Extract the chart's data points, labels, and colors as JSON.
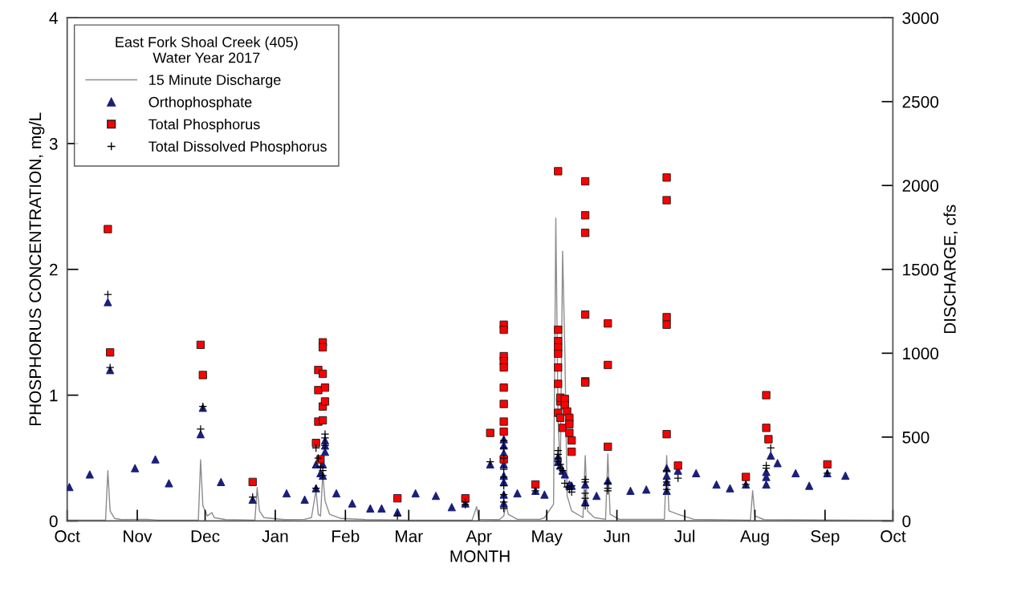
{
  "chart_data": {
    "type": "scatter",
    "legend_title": "East Fork Shoal Creek (405)\nWater Year 2017",
    "xlabel": "MONTH",
    "ylabel": "PHOSPHORUS CONCENTRATION, mg/L",
    "y2label": "DISCHARGE, cfs",
    "xlim": [
      "2016-10-01",
      "2017-10-01"
    ],
    "xticks": [
      {
        "value": "2016-10-01",
        "label": "Oct"
      },
      {
        "value": "2016-11-01",
        "label": "Nov"
      },
      {
        "value": "2016-12-01",
        "label": "Dec"
      },
      {
        "value": "2017-01-01",
        "label": "Jan"
      },
      {
        "value": "2017-02-01",
        "label": "Feb"
      },
      {
        "value": "2017-03-01",
        "label": "Mar"
      },
      {
        "value": "2017-04-01",
        "label": "Apr"
      },
      {
        "value": "2017-05-01",
        "label": "May"
      },
      {
        "value": "2017-06-01",
        "label": "Jun"
      },
      {
        "value": "2017-07-01",
        "label": "Jul"
      },
      {
        "value": "2017-08-01",
        "label": "Aug"
      },
      {
        "value": "2017-09-01",
        "label": "Sep"
      },
      {
        "value": "2017-10-01",
        "label": "Oct"
      }
    ],
    "ylim": [
      0,
      4
    ],
    "yticks": [
      0,
      1,
      2,
      3,
      4
    ],
    "y2lim": [
      0,
      3000
    ],
    "y2ticks": [
      0,
      500,
      1000,
      1500,
      2000,
      2500,
      3000
    ],
    "grid": false,
    "legend": "top left",
    "series": [
      {
        "name": "15 Minute Discharge",
        "type": "line",
        "axis": "y2",
        "color": "#8c8c8c",
        "marker": "none",
        "line_style": "solid",
        "x": [
          "2016-10-01",
          "2016-10-18",
          "2016-10-19",
          "2016-10-20",
          "2016-10-22",
          "2016-10-25",
          "2016-11-05",
          "2016-11-10",
          "2016-11-28",
          "2016-11-29",
          "2016-11-30",
          "2016-12-02",
          "2016-12-04",
          "2016-12-05",
          "2016-12-10",
          "2016-12-23",
          "2016-12-24",
          "2016-12-25",
          "2016-12-27",
          "2017-01-05",
          "2017-01-14",
          "2017-01-17",
          "2017-01-19",
          "2017-01-20",
          "2017-01-21",
          "2017-01-22",
          "2017-01-23",
          "2017-01-25",
          "2017-01-30",
          "2017-02-10",
          "2017-03-01",
          "2017-03-29",
          "2017-03-31",
          "2017-04-01",
          "2017-04-10",
          "2017-04-12",
          "2017-04-13",
          "2017-04-14",
          "2017-04-18",
          "2017-04-28",
          "2017-04-30",
          "2017-05-04",
          "2017-05-05",
          "2017-05-06",
          "2017-05-07",
          "2017-05-08",
          "2017-05-09",
          "2017-05-10",
          "2017-05-12",
          "2017-05-17",
          "2017-05-18",
          "2017-05-19",
          "2017-05-22",
          "2017-05-27",
          "2017-05-28",
          "2017-05-29",
          "2017-06-02",
          "2017-06-22",
          "2017-06-23",
          "2017-06-24",
          "2017-06-28",
          "2017-07-05",
          "2017-07-30",
          "2017-07-31",
          "2017-08-01",
          "2017-08-05",
          "2017-09-30"
        ],
        "values": [
          5,
          5,
          300,
          60,
          15,
          8,
          10,
          5,
          5,
          365,
          90,
          30,
          50,
          20,
          8,
          5,
          200,
          60,
          20,
          8,
          10,
          20,
          183,
          40,
          30,
          280,
          120,
          40,
          15,
          8,
          5,
          5,
          85,
          10,
          8,
          30,
          100,
          40,
          10,
          10,
          20,
          100,
          1805,
          600,
          300,
          1608,
          1010,
          150,
          60,
          20,
          390,
          60,
          20,
          10,
          400,
          40,
          10,
          10,
          390,
          60,
          40,
          10,
          5,
          180,
          30,
          8,
          3
        ]
      },
      {
        "name": "Orthophosphate",
        "color": "#1a1f7a",
        "marker": "triangle",
        "x": [
          "2016-10-02",
          "2016-10-11",
          "2016-10-19",
          "2016-10-20",
          "2016-10-31",
          "2016-11-09",
          "2016-11-15",
          "2016-11-29",
          "2016-11-30",
          "2016-12-08",
          "2016-12-22",
          "2017-01-06",
          "2017-01-14",
          "2017-01-19",
          "2017-01-19",
          "2017-01-21",
          "2017-01-22",
          "2017-01-22",
          "2017-01-23",
          "2017-01-23",
          "2017-01-23",
          "2017-01-28",
          "2017-02-04",
          "2017-02-12",
          "2017-02-17",
          "2017-02-24",
          "2017-03-04",
          "2017-03-13",
          "2017-03-20",
          "2017-03-26",
          "2017-04-06",
          "2017-04-12",
          "2017-04-12",
          "2017-04-12",
          "2017-04-12",
          "2017-04-12",
          "2017-04-12",
          "2017-04-12",
          "2017-04-12",
          "2017-04-18",
          "2017-04-26",
          "2017-04-30",
          "2017-05-06",
          "2017-05-06",
          "2017-05-07",
          "2017-05-08",
          "2017-05-09",
          "2017-05-11",
          "2017-05-12",
          "2017-05-18",
          "2017-05-18",
          "2017-05-23",
          "2017-05-28",
          "2017-06-07",
          "2017-06-14",
          "2017-06-23",
          "2017-06-23",
          "2017-06-23",
          "2017-06-23",
          "2017-06-28",
          "2017-07-06",
          "2017-07-15",
          "2017-07-21",
          "2017-07-28",
          "2017-08-06",
          "2017-08-06",
          "2017-08-06",
          "2017-08-08",
          "2017-08-11",
          "2017-08-19",
          "2017-08-25",
          "2017-09-02",
          "2017-09-10"
        ],
        "values": [
          0.27,
          0.37,
          1.74,
          1.2,
          0.42,
          0.49,
          0.3,
          0.69,
          0.9,
          0.31,
          0.17,
          0.22,
          0.17,
          0.26,
          0.45,
          0.38,
          0.36,
          0.45,
          0.55,
          0.6,
          0.64,
          0.22,
          0.14,
          0.1,
          0.1,
          0.07,
          0.22,
          0.2,
          0.11,
          0.14,
          0.45,
          0.65,
          0.6,
          0.54,
          0.45,
          0.36,
          0.31,
          0.21,
          0.14,
          0.22,
          0.24,
          0.21,
          0.51,
          0.47,
          0.44,
          0.4,
          0.37,
          0.29,
          0.28,
          0.29,
          0.15,
          0.2,
          0.32,
          0.24,
          0.25,
          0.42,
          0.36,
          0.31,
          0.24,
          0.4,
          0.38,
          0.29,
          0.26,
          0.29,
          0.29,
          0.35,
          0.39,
          0.52,
          0.46,
          0.38,
          0.28,
          0.38,
          0.36
        ]
      },
      {
        "name": "Total Phosphorus",
        "color": "#ff0000",
        "marker": "square",
        "x": [
          "2016-10-19",
          "2016-10-20",
          "2016-11-29",
          "2016-11-30",
          "2016-12-22",
          "2017-01-19",
          "2017-01-20",
          "2017-01-20",
          "2017-01-20",
          "2017-01-21",
          "2017-01-22",
          "2017-01-22",
          "2017-01-22",
          "2017-01-22",
          "2017-01-22",
          "2017-01-23",
          "2017-01-23",
          "2017-02-24",
          "2017-03-26",
          "2017-04-06",
          "2017-04-12",
          "2017-04-12",
          "2017-04-12",
          "2017-04-12",
          "2017-04-12",
          "2017-04-12",
          "2017-04-12",
          "2017-04-12",
          "2017-04-12",
          "2017-04-12",
          "2017-04-26",
          "2017-05-06",
          "2017-05-06",
          "2017-05-06",
          "2017-05-06",
          "2017-05-06",
          "2017-05-06",
          "2017-05-06",
          "2017-05-06",
          "2017-05-07",
          "2017-05-07",
          "2017-05-07",
          "2017-05-08",
          "2017-05-09",
          "2017-05-09",
          "2017-05-10",
          "2017-05-11",
          "2017-05-11",
          "2017-05-11",
          "2017-05-12",
          "2017-05-12",
          "2017-05-18",
          "2017-05-18",
          "2017-05-18",
          "2017-05-18",
          "2017-05-18",
          "2017-05-18",
          "2017-05-28",
          "2017-05-28",
          "2017-05-28",
          "2017-06-23",
          "2017-06-23",
          "2017-06-23",
          "2017-06-23",
          "2017-06-23",
          "2017-06-28",
          "2017-07-28",
          "2017-08-06",
          "2017-08-06",
          "2017-08-07",
          "2017-09-02"
        ],
        "values": [
          2.32,
          1.34,
          1.4,
          1.16,
          0.31,
          0.62,
          1.2,
          1.04,
          0.79,
          0.49,
          1.42,
          1.38,
          1.17,
          0.91,
          0.8,
          1.06,
          0.95,
          0.18,
          0.18,
          0.7,
          1.56,
          1.52,
          1.31,
          1.27,
          1.22,
          1.06,
          0.93,
          0.79,
          0.71,
          0.49,
          0.29,
          2.78,
          1.52,
          1.43,
          1.38,
          1.33,
          1.22,
          1.09,
          0.86,
          0.95,
          0.98,
          0.82,
          0.74,
          0.97,
          0.92,
          0.87,
          0.82,
          0.77,
          0.7,
          0.64,
          0.55,
          2.7,
          2.43,
          2.29,
          1.64,
          1.11,
          1.1,
          1.57,
          1.24,
          0.59,
          2.73,
          2.55,
          1.62,
          1.56,
          0.69,
          0.44,
          0.35,
          1.0,
          0.74,
          0.65,
          0.45
        ]
      },
      {
        "name": "Total Dissolved Phosphorus",
        "color": "#000000",
        "marker": "cross",
        "x": [
          "2016-10-19",
          "2016-10-20",
          "2016-11-29",
          "2016-11-30",
          "2016-12-22",
          "2017-01-19",
          "2017-01-19",
          "2017-01-20",
          "2017-01-21",
          "2017-01-22",
          "2017-01-22",
          "2017-01-23",
          "2017-01-23",
          "2017-01-23",
          "2017-02-24",
          "2017-03-26",
          "2017-03-26",
          "2017-04-06",
          "2017-04-12",
          "2017-04-12",
          "2017-04-12",
          "2017-04-12",
          "2017-04-12",
          "2017-04-12",
          "2017-04-12",
          "2017-04-12",
          "2017-04-12",
          "2017-04-26",
          "2017-05-06",
          "2017-05-06",
          "2017-05-06",
          "2017-05-06",
          "2017-05-07",
          "2017-05-07",
          "2017-05-08",
          "2017-05-09",
          "2017-05-10",
          "2017-05-11",
          "2017-05-12",
          "2017-05-12",
          "2017-05-18",
          "2017-05-18",
          "2017-05-18",
          "2017-05-18",
          "2017-05-18",
          "2017-05-28",
          "2017-05-28",
          "2017-05-28",
          "2017-06-23",
          "2017-06-23",
          "2017-06-23",
          "2017-06-28",
          "2017-07-28",
          "2017-08-06",
          "2017-08-06",
          "2017-08-08",
          "2017-09-02"
        ],
        "values": [
          1.8,
          1.22,
          0.73,
          0.91,
          0.19,
          0.26,
          0.58,
          0.5,
          0.43,
          0.4,
          0.36,
          0.69,
          0.66,
          0.6,
          0.04,
          0.15,
          0.13,
          0.47,
          0.64,
          0.58,
          0.5,
          0.41,
          0.35,
          0.28,
          0.21,
          0.15,
          0.1,
          0.24,
          0.56,
          0.53,
          0.5,
          0.47,
          0.45,
          0.42,
          0.4,
          0.3,
          0.27,
          0.25,
          0.28,
          0.23,
          0.33,
          0.31,
          0.22,
          0.18,
          0.12,
          0.3,
          0.26,
          0.24,
          0.4,
          0.31,
          0.25,
          0.34,
          0.29,
          0.44,
          0.42,
          0.58,
          0.38
        ]
      }
    ]
  }
}
